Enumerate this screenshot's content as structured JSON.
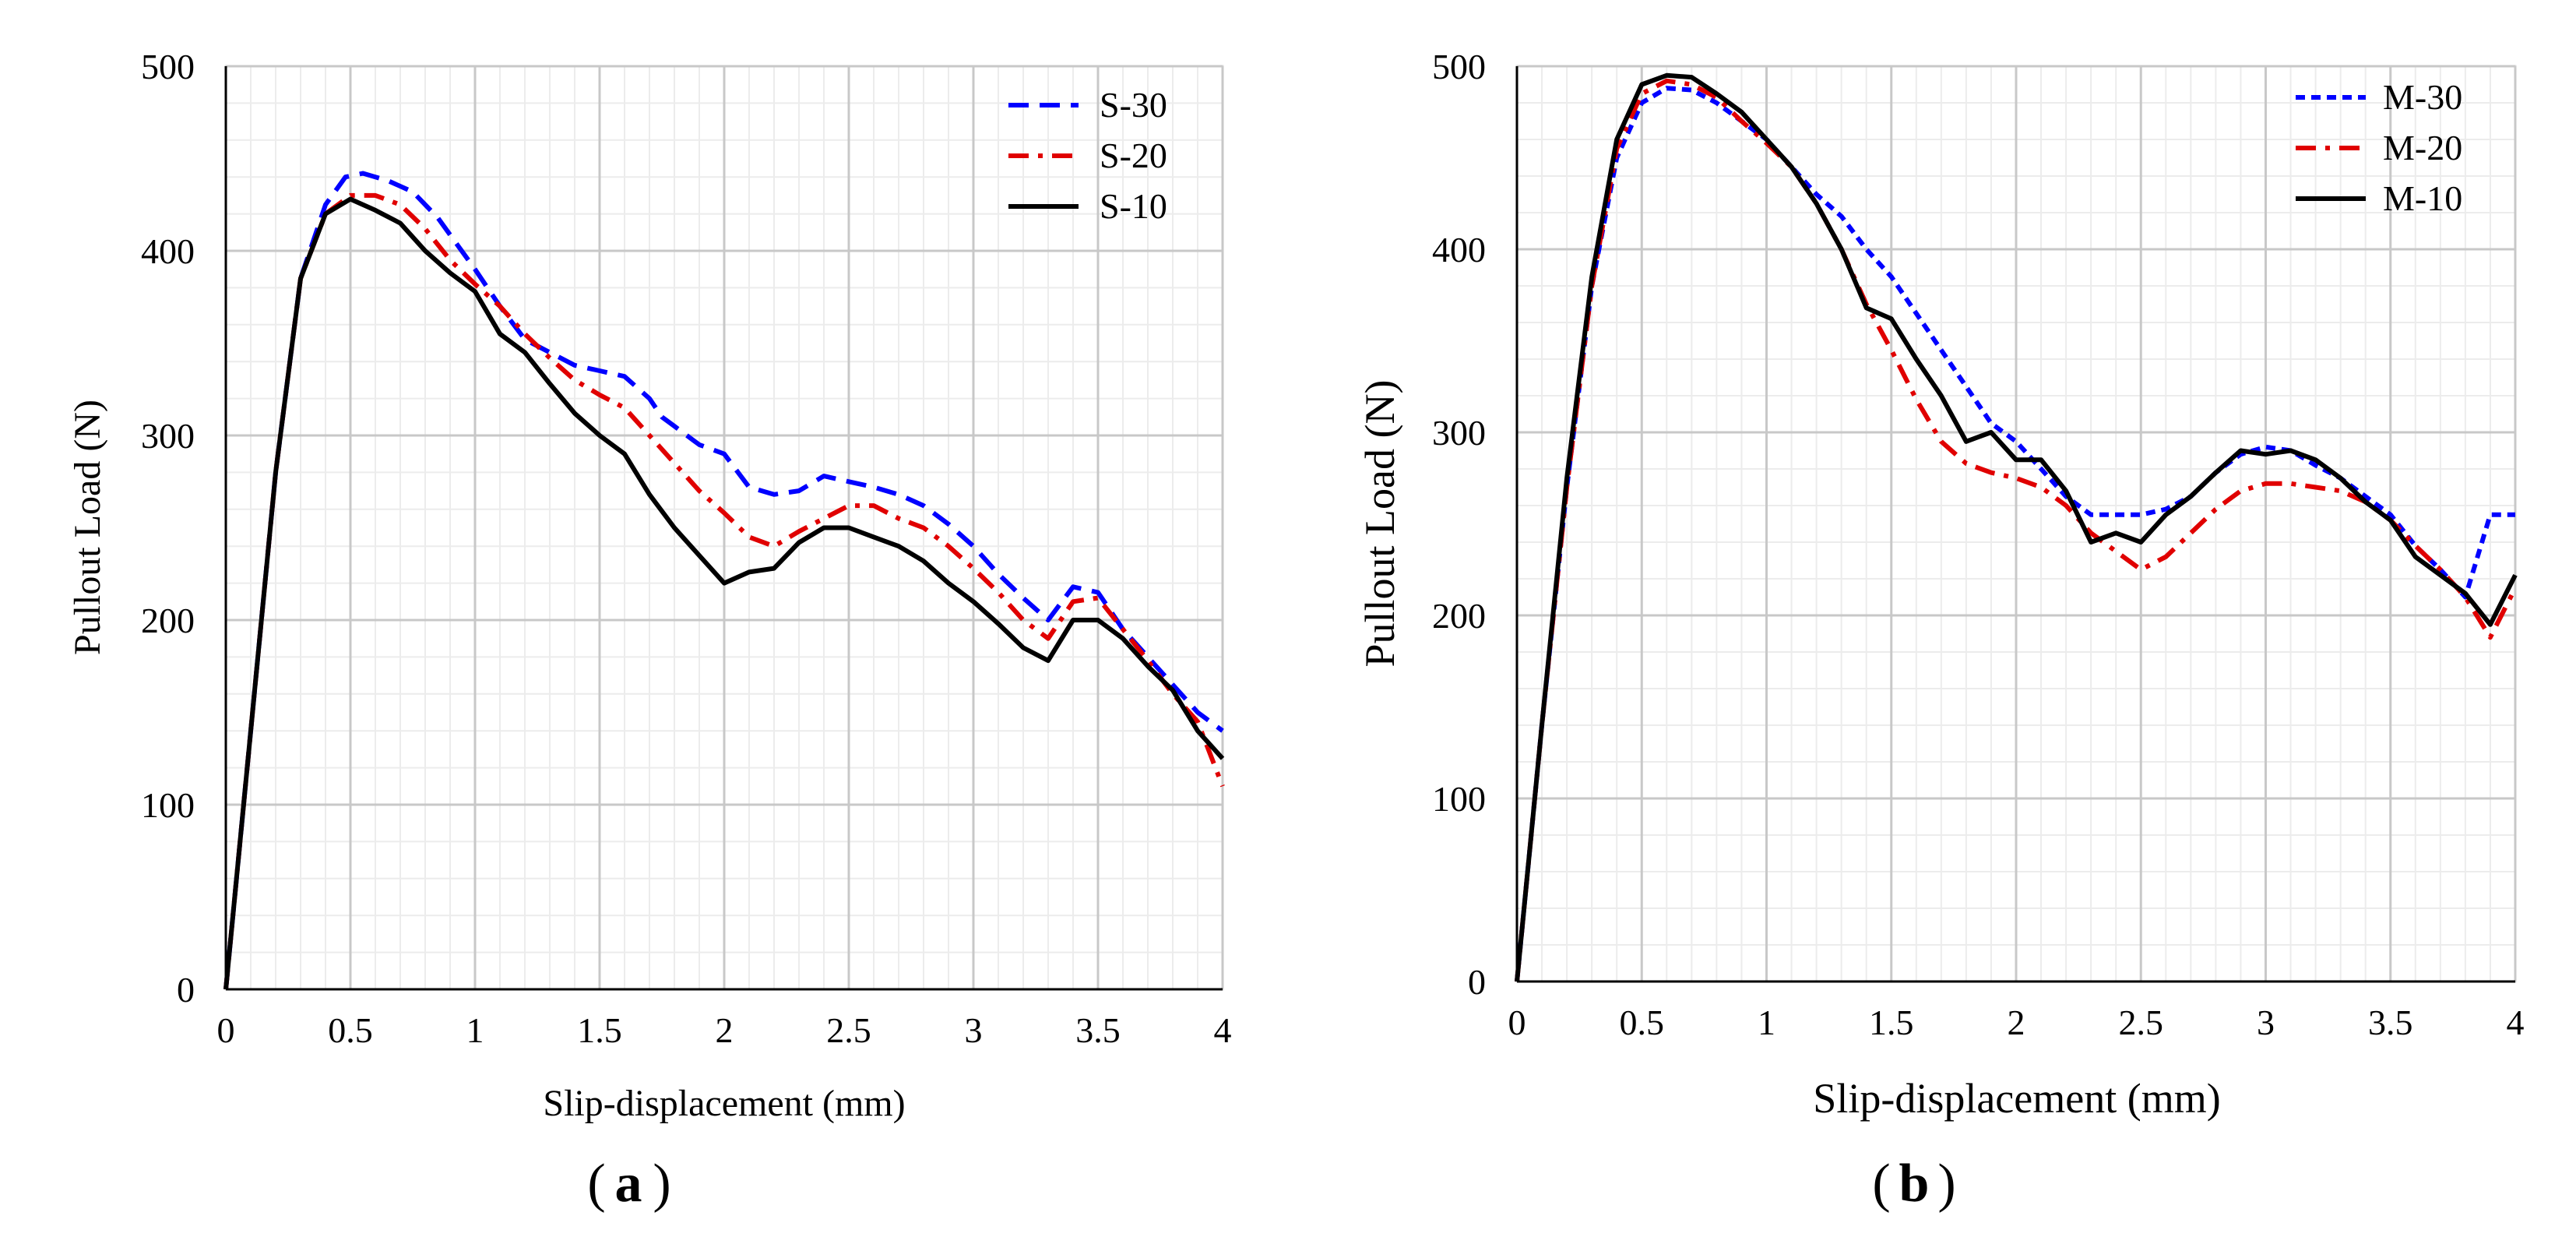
{
  "chart_data": [
    {
      "id": "a",
      "type": "line",
      "panel_label": "a",
      "xlabel": "Slip-displacement  (mm)",
      "ylabel": "Pullout Load (N)",
      "xlim": [
        0,
        4
      ],
      "ylim": [
        0,
        500
      ],
      "x_ticks": [
        "0",
        "0.5",
        "1",
        "1.5",
        "2",
        "2.5",
        "3",
        "3.5",
        "4"
      ],
      "y_ticks": [
        "0",
        "100",
        "200",
        "300",
        "400",
        "500"
      ],
      "grid": true,
      "legend_position": "top-right",
      "series": [
        {
          "name": "S-30",
          "color": "#0000FF",
          "style": "dashed",
          "points": [
            [
              0,
              0
            ],
            [
              0.1,
              140
            ],
            [
              0.2,
              280
            ],
            [
              0.3,
              385
            ],
            [
              0.4,
              425
            ],
            [
              0.48,
              440
            ],
            [
              0.55,
              442
            ],
            [
              0.65,
              438
            ],
            [
              0.75,
              432
            ],
            [
              0.85,
              418
            ],
            [
              1.0,
              390
            ],
            [
              1.1,
              370
            ],
            [
              1.2,
              352
            ],
            [
              1.3,
              345
            ],
            [
              1.4,
              338
            ],
            [
              1.5,
              335
            ],
            [
              1.6,
              332
            ],
            [
              1.7,
              320
            ],
            [
              1.75,
              310
            ],
            [
              1.8,
              305
            ],
            [
              1.9,
              295
            ],
            [
              2.0,
              290
            ],
            [
              2.1,
              272
            ],
            [
              2.2,
              268
            ],
            [
              2.3,
              270
            ],
            [
              2.4,
              278
            ],
            [
              2.5,
              275
            ],
            [
              2.6,
              272
            ],
            [
              2.7,
              268
            ],
            [
              2.8,
              262
            ],
            [
              2.9,
              252
            ],
            [
              3.0,
              240
            ],
            [
              3.1,
              225
            ],
            [
              3.2,
              212
            ],
            [
              3.3,
              200
            ],
            [
              3.4,
              218
            ],
            [
              3.5,
              215
            ],
            [
              3.6,
              195
            ],
            [
              3.7,
              180
            ],
            [
              3.8,
              165
            ],
            [
              3.9,
              150
            ],
            [
              4.0,
              140
            ]
          ]
        },
        {
          "name": "S-20",
          "color": "#E00000",
          "style": "dashdot",
          "points": [
            [
              0,
              0
            ],
            [
              0.1,
              140
            ],
            [
              0.2,
              280
            ],
            [
              0.3,
              385
            ],
            [
              0.4,
              420
            ],
            [
              0.5,
              430
            ],
            [
              0.6,
              430
            ],
            [
              0.7,
              425
            ],
            [
              0.8,
              412
            ],
            [
              0.9,
              395
            ],
            [
              1.0,
              382
            ],
            [
              1.1,
              370
            ],
            [
              1.2,
              355
            ],
            [
              1.3,
              342
            ],
            [
              1.4,
              330
            ],
            [
              1.5,
              322
            ],
            [
              1.6,
              315
            ],
            [
              1.7,
              300
            ],
            [
              1.8,
              285
            ],
            [
              1.9,
              270
            ],
            [
              2.0,
              258
            ],
            [
              2.1,
              245
            ],
            [
              2.2,
              240
            ],
            [
              2.3,
              248
            ],
            [
              2.4,
              255
            ],
            [
              2.5,
              262
            ],
            [
              2.6,
              262
            ],
            [
              2.7,
              255
            ],
            [
              2.8,
              250
            ],
            [
              2.9,
              240
            ],
            [
              3.0,
              228
            ],
            [
              3.1,
              215
            ],
            [
              3.2,
              200
            ],
            [
              3.3,
              190
            ],
            [
              3.4,
              210
            ],
            [
              3.5,
              212
            ],
            [
              3.6,
              195
            ],
            [
              3.7,
              178
            ],
            [
              3.8,
              160
            ],
            [
              3.9,
              145
            ],
            [
              4.0,
              110
            ]
          ]
        },
        {
          "name": "S-10",
          "color": "#000000",
          "style": "solid",
          "points": [
            [
              0,
              0
            ],
            [
              0.1,
              140
            ],
            [
              0.2,
              280
            ],
            [
              0.3,
              385
            ],
            [
              0.4,
              420
            ],
            [
              0.5,
              428
            ],
            [
              0.6,
              422
            ],
            [
              0.7,
              415
            ],
            [
              0.8,
              400
            ],
            [
              0.9,
              388
            ],
            [
              1.0,
              378
            ],
            [
              1.1,
              355
            ],
            [
              1.2,
              345
            ],
            [
              1.3,
              328
            ],
            [
              1.4,
              312
            ],
            [
              1.5,
              300
            ],
            [
              1.6,
              290
            ],
            [
              1.7,
              268
            ],
            [
              1.8,
              250
            ],
            [
              1.9,
              235
            ],
            [
              2.0,
              220
            ],
            [
              2.1,
              226
            ],
            [
              2.2,
              228
            ],
            [
              2.3,
              242
            ],
            [
              2.4,
              250
            ],
            [
              2.5,
              250
            ],
            [
              2.6,
              245
            ],
            [
              2.7,
              240
            ],
            [
              2.8,
              232
            ],
            [
              2.9,
              220
            ],
            [
              3.0,
              210
            ],
            [
              3.1,
              198
            ],
            [
              3.2,
              185
            ],
            [
              3.3,
              178
            ],
            [
              3.4,
              200
            ],
            [
              3.5,
              200
            ],
            [
              3.6,
              190
            ],
            [
              3.7,
              175
            ],
            [
              3.8,
              162
            ],
            [
              3.9,
              140
            ],
            [
              4.0,
              125
            ]
          ]
        }
      ]
    },
    {
      "id": "b",
      "type": "line",
      "panel_label": "b",
      "xlabel": "Slip-displacement (mm)",
      "ylabel": "Pullout Load (N)",
      "xlim": [
        0,
        4
      ],
      "ylim": [
        0,
        500
      ],
      "x_ticks": [
        "0",
        "0.5",
        "1",
        "1.5",
        "2",
        "2.5",
        "3",
        "3.5",
        "4"
      ],
      "y_ticks": [
        "0",
        "100",
        "200",
        "300",
        "400",
        "500"
      ],
      "grid": true,
      "legend_position": "top-right",
      "series": [
        {
          "name": "M-30",
          "color": "#0000FF",
          "style": "dotted",
          "points": [
            [
              0,
              0
            ],
            [
              0.1,
              140
            ],
            [
              0.2,
              270
            ],
            [
              0.3,
              380
            ],
            [
              0.4,
              450
            ],
            [
              0.5,
              480
            ],
            [
              0.6,
              488
            ],
            [
              0.7,
              487
            ],
            [
              0.8,
              480
            ],
            [
              0.9,
              470
            ],
            [
              1.0,
              460
            ],
            [
              1.1,
              445
            ],
            [
              1.2,
              430
            ],
            [
              1.3,
              418
            ],
            [
              1.4,
              400
            ],
            [
              1.5,
              385
            ],
            [
              1.6,
              365
            ],
            [
              1.7,
              345
            ],
            [
              1.8,
              325
            ],
            [
              1.9,
              305
            ],
            [
              2.0,
              295
            ],
            [
              2.1,
              280
            ],
            [
              2.2,
              265
            ],
            [
              2.3,
              255
            ],
            [
              2.4,
              255
            ],
            [
              2.5,
              255
            ],
            [
              2.6,
              258
            ],
            [
              2.7,
              265
            ],
            [
              2.8,
              278
            ],
            [
              2.9,
              288
            ],
            [
              3.0,
              292
            ],
            [
              3.1,
              290
            ],
            [
              3.2,
              282
            ],
            [
              3.3,
              275
            ],
            [
              3.4,
              265
            ],
            [
              3.5,
              255
            ],
            [
              3.6,
              238
            ],
            [
              3.7,
              225
            ],
            [
              3.8,
              210
            ],
            [
              3.9,
              255
            ],
            [
              4.0,
              255
            ]
          ]
        },
        {
          "name": "M-20",
          "color": "#E00000",
          "style": "dashdot",
          "points": [
            [
              0,
              0
            ],
            [
              0.1,
              140
            ],
            [
              0.2,
              270
            ],
            [
              0.3,
              380
            ],
            [
              0.4,
              455
            ],
            [
              0.5,
              485
            ],
            [
              0.6,
              492
            ],
            [
              0.7,
              490
            ],
            [
              0.8,
              483
            ],
            [
              0.9,
              470
            ],
            [
              1.0,
              458
            ],
            [
              1.1,
              445
            ],
            [
              1.2,
              425
            ],
            [
              1.3,
              400
            ],
            [
              1.4,
              370
            ],
            [
              1.5,
              345
            ],
            [
              1.6,
              318
            ],
            [
              1.7,
              295
            ],
            [
              1.8,
              283
            ],
            [
              1.9,
              278
            ],
            [
              2.0,
              275
            ],
            [
              2.1,
              270
            ],
            [
              2.2,
              260
            ],
            [
              2.3,
              245
            ],
            [
              2.4,
              235
            ],
            [
              2.5,
              225
            ],
            [
              2.6,
              232
            ],
            [
              2.7,
              245
            ],
            [
              2.8,
              258
            ],
            [
              2.9,
              268
            ],
            [
              3.0,
              272
            ],
            [
              3.1,
              272
            ],
            [
              3.2,
              270
            ],
            [
              3.3,
              268
            ],
            [
              3.4,
              262
            ],
            [
              3.5,
              252
            ],
            [
              3.6,
              238
            ],
            [
              3.7,
              225
            ],
            [
              3.8,
              210
            ],
            [
              3.9,
              188
            ],
            [
              4.0,
              215
            ]
          ]
        },
        {
          "name": "M-10",
          "color": "#000000",
          "style": "solid",
          "points": [
            [
              0,
              0
            ],
            [
              0.1,
              140
            ],
            [
              0.2,
              275
            ],
            [
              0.3,
              385
            ],
            [
              0.4,
              460
            ],
            [
              0.5,
              490
            ],
            [
              0.6,
              495
            ],
            [
              0.7,
              494
            ],
            [
              0.8,
              485
            ],
            [
              0.9,
              475
            ],
            [
              1.0,
              460
            ],
            [
              1.1,
              445
            ],
            [
              1.2,
              425
            ],
            [
              1.3,
              400
            ],
            [
              1.4,
              368
            ],
            [
              1.5,
              362
            ],
            [
              1.6,
              340
            ],
            [
              1.7,
              320
            ],
            [
              1.8,
              295
            ],
            [
              1.9,
              300
            ],
            [
              2.0,
              285
            ],
            [
              2.1,
              285
            ],
            [
              2.2,
              268
            ],
            [
              2.3,
              240
            ],
            [
              2.4,
              245
            ],
            [
              2.5,
              240
            ],
            [
              2.6,
              255
            ],
            [
              2.7,
              265
            ],
            [
              2.8,
              278
            ],
            [
              2.9,
              290
            ],
            [
              3.0,
              288
            ],
            [
              3.1,
              290
            ],
            [
              3.2,
              285
            ],
            [
              3.3,
              275
            ],
            [
              3.4,
              262
            ],
            [
              3.5,
              252
            ],
            [
              3.6,
              232
            ],
            [
              3.7,
              222
            ],
            [
              3.8,
              212
            ],
            [
              3.9,
              195
            ],
            [
              4.0,
              222
            ]
          ]
        }
      ]
    }
  ]
}
